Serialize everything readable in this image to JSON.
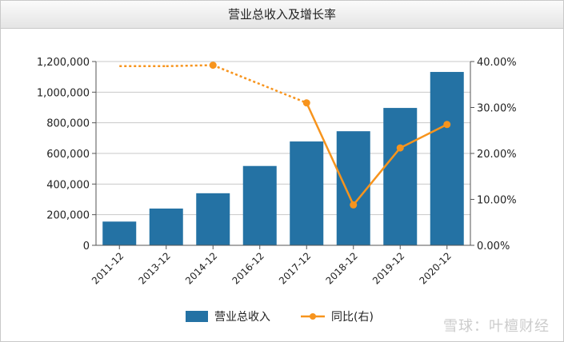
{
  "title": "营业总收入及增长率",
  "watermark": "雪球：叶檀财经",
  "colors": {
    "bar": "#2472a4",
    "line": "#f7941d",
    "grid": "#c8c8c8",
    "axis": "#555555"
  },
  "chart_data": {
    "type": "bar",
    "title": "营业总收入及增长率",
    "categories": [
      "2011-12",
      "2013-12",
      "2014-12",
      "2016-12",
      "2017-12",
      "2018-12",
      "2019-12",
      "2020-12"
    ],
    "left_axis": {
      "ylim": [
        0,
        1200000
      ],
      "ticks": [
        "0",
        "200,000",
        "400,000",
        "600,000",
        "800,000",
        "1,000,000",
        "1,200,000"
      ]
    },
    "right_axis": {
      "ylim": [
        0,
        40
      ],
      "ticks": [
        "0.00%",
        "10.00%",
        "20.00%",
        "30.00%",
        "40.00%"
      ]
    },
    "series": [
      {
        "name": "营业总收入",
        "type": "bar",
        "axis": "left",
        "values": [
          155000,
          240000,
          340000,
          518000,
          678000,
          745000,
          897000,
          1132000
        ]
      },
      {
        "name": "同比(右)",
        "type": "line",
        "axis": "right",
        "values": [
          39.0,
          39.0,
          39.2,
          null,
          31.0,
          8.8,
          21.2,
          26.3
        ]
      }
    ],
    "dashed_segments_note": "dotted",
    "legend_position": "bottom",
    "grid": true
  }
}
